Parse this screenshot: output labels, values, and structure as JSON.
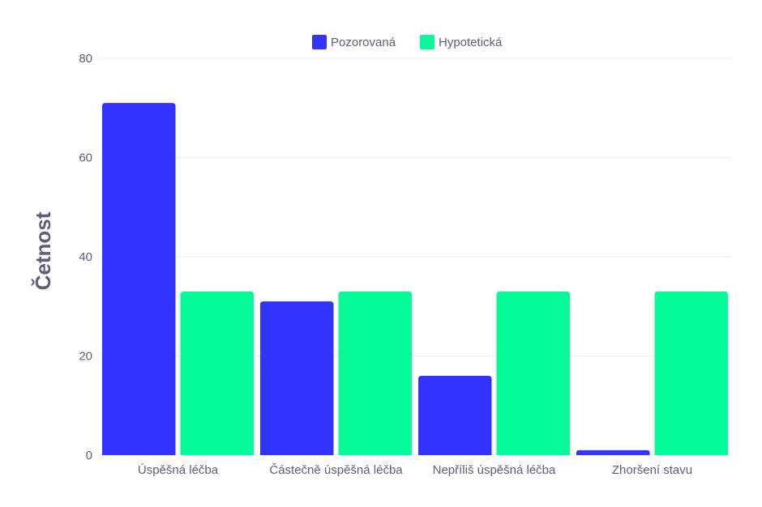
{
  "chart_data": {
    "type": "bar",
    "title": "",
    "xlabel": "",
    "ylabel": "Četnost",
    "ylim": [
      0,
      80
    ],
    "yticks": [
      0,
      20,
      40,
      60,
      80
    ],
    "grid": true,
    "legend_position": "top-center",
    "categories": [
      "Úspěšná léčba",
      "Částečně úspěšná léčba",
      "Nepříliš úspěšná léčba",
      "Zhoršení stavu"
    ],
    "series": [
      {
        "name": "Pozorovaná",
        "color": "#3333ff",
        "values": [
          71,
          31,
          16,
          1
        ]
      },
      {
        "name": "Hypotetická",
        "color": "#05fa98",
        "values": [
          33,
          33,
          33,
          33
        ]
      }
    ]
  },
  "colors": {
    "text": "#5a607a",
    "axis_title": "#5a607a",
    "grid": "#ececf2"
  }
}
